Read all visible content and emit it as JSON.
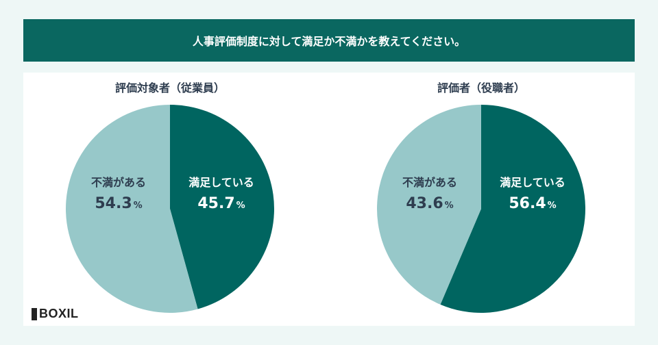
{
  "header": {
    "title": "人事評価制度に対して満足か不満かを教えてください。"
  },
  "colors": {
    "satisfied": "#006560",
    "dissatisfied": "#97c8c9",
    "header": "#0a6760",
    "text_dark": "#2e3d4f"
  },
  "chart_data": [
    {
      "type": "pie",
      "title": "評価対象者（従業員）",
      "slices": [
        {
          "label": "満足している",
          "value": 45.7,
          "display": "45.7"
        },
        {
          "label": "不満がある",
          "value": 54.3,
          "display": "54.3"
        }
      ],
      "unit": "%"
    },
    {
      "type": "pie",
      "title": "評価者（役職者）",
      "slices": [
        {
          "label": "満足している",
          "value": 56.4,
          "display": "56.4"
        },
        {
          "label": "不満がある",
          "value": 43.6,
          "display": "43.6"
        }
      ],
      "unit": "%"
    }
  ],
  "logo": {
    "text": "BOXIL"
  }
}
